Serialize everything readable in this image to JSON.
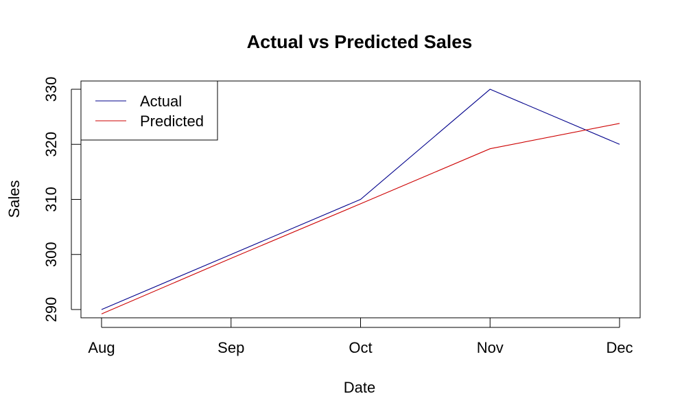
{
  "chart_data": {
    "type": "line",
    "title": "Actual vs Predicted Sales",
    "xlabel": "Date",
    "ylabel": "Sales",
    "categories": [
      "Aug",
      "Sep",
      "Oct",
      "Nov",
      "Dec"
    ],
    "x_positions": [
      0,
      1,
      2,
      3,
      4
    ],
    "ylim": [
      288.5,
      331.5
    ],
    "y_ticks": [
      290,
      300,
      310,
      320,
      330
    ],
    "grid": false,
    "legend_position": "top-left",
    "series": [
      {
        "name": "Actual",
        "color": "#00008B",
        "values": [
          290,
          300,
          310,
          330,
          320
        ]
      },
      {
        "name": "Predicted",
        "color": "#CD0000",
        "values": [
          289.2,
          299.3,
          309.2,
          319.2,
          323.8
        ]
      }
    ]
  }
}
